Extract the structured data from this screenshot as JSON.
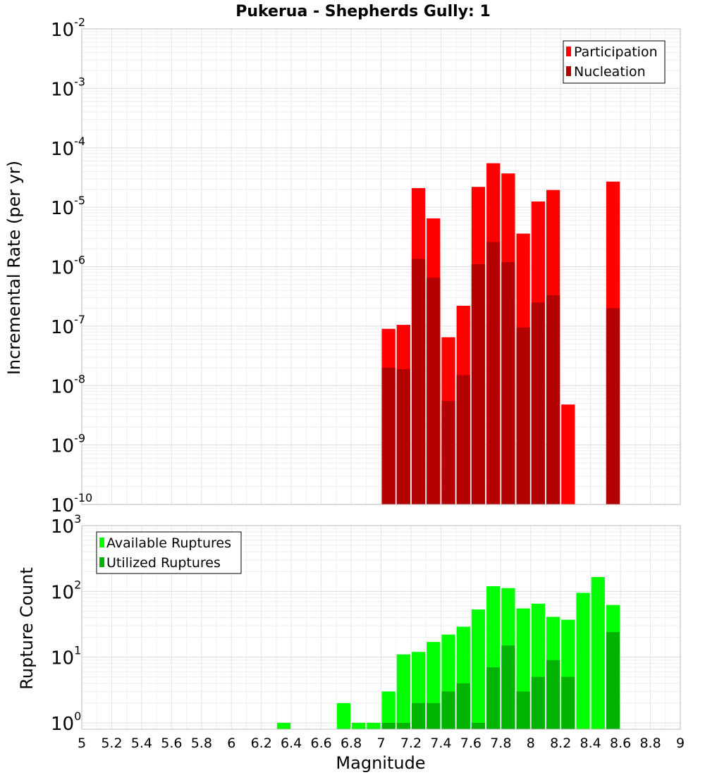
{
  "chart_data": {
    "type": "bar",
    "title": "Pukerua - Shepherds Gully: 1",
    "xlabel": "Magnitude",
    "xlim": [
      5,
      9
    ],
    "xticks": [
      "5",
      "5.2",
      "5.4",
      "5.6",
      "5.8",
      "6",
      "6.2",
      "6.4",
      "6.6",
      "6.8",
      "7",
      "7.2",
      "7.4",
      "7.6",
      "7.8",
      "8",
      "8.2",
      "8.4",
      "8.6",
      "8.8",
      "9"
    ],
    "bin_width": 0.1,
    "panels": [
      {
        "ylabel": "Incremental Rate (per yr)",
        "yscale": "log",
        "ylim": [
          1e-10,
          0.01
        ],
        "yticks": [
          {
            "base": "10",
            "exp": "-10"
          },
          {
            "base": "10",
            "exp": "-9"
          },
          {
            "base": "10",
            "exp": "-8"
          },
          {
            "base": "10",
            "exp": "-7"
          },
          {
            "base": "10",
            "exp": "-6"
          },
          {
            "base": "10",
            "exp": "-5"
          },
          {
            "base": "10",
            "exp": "-4"
          },
          {
            "base": "10",
            "exp": "-3"
          },
          {
            "base": "10",
            "exp": "-2"
          }
        ],
        "legend_position": "top-right",
        "grid": true,
        "x": [
          7.05,
          7.15,
          7.25,
          7.35,
          7.45,
          7.55,
          7.65,
          7.75,
          7.85,
          7.95,
          8.05,
          8.15,
          8.25,
          8.55
        ],
        "series": [
          {
            "name": "Participation",
            "color": "#ff0000",
            "values": [
              9e-08,
              1.05e-07,
              2.1e-05,
              6.5e-06,
              6.5e-08,
              2.2e-07,
              2.2e-05,
              5.5e-05,
              3.7e-05,
              3.6e-06,
              1.25e-05,
              1.95e-05,
              4.8e-09,
              2.7e-05
            ]
          },
          {
            "name": "Nucleation",
            "color": "#b30000",
            "values": [
              2e-08,
              1.9e-08,
              1.35e-06,
              6.5e-07,
              5.5e-09,
              1.5e-08,
              1.1e-06,
              2.6e-06,
              1.2e-06,
              9.5e-08,
              2.5e-07,
              3.3e-07,
              null,
              2e-07
            ]
          }
        ]
      },
      {
        "ylabel": "Rupture Count",
        "yscale": "log",
        "ylim": [
          0.8,
          1000
        ],
        "yticks": [
          {
            "base": "10",
            "exp": "0"
          },
          {
            "base": "10",
            "exp": "1"
          },
          {
            "base": "10",
            "exp": "2"
          },
          {
            "base": "10",
            "exp": "3"
          }
        ],
        "legend_position": "top-left",
        "grid": true,
        "x": [
          6.35,
          6.75,
          6.85,
          6.95,
          7.05,
          7.15,
          7.25,
          7.35,
          7.45,
          7.55,
          7.65,
          7.75,
          7.85,
          7.95,
          8.05,
          8.15,
          8.25,
          8.35,
          8.45,
          8.55
        ],
        "series": [
          {
            "name": "Available Ruptures",
            "color": "#00ff00",
            "values": [
              1,
              2,
              1,
              1,
              3,
              11,
              12,
              17,
              22,
              29,
              53,
              120,
              112,
              55,
              65,
              41,
              37,
              95,
              165,
              62
            ]
          },
          {
            "name": "Utilized Ruptures",
            "color": "#00b300",
            "values": [
              null,
              null,
              null,
              null,
              1,
              1,
              2,
              2,
              3,
              4,
              1,
              7,
              15,
              3,
              5,
              9,
              5,
              null,
              null,
              24
            ]
          }
        ]
      }
    ]
  }
}
